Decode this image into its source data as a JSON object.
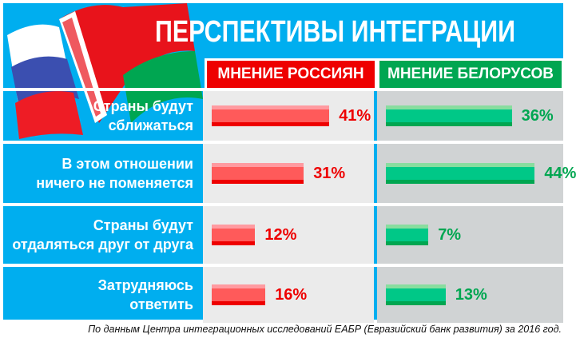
{
  "title": "ПЕРСПЕКТИВЫ ИНТЕГРАЦИИ",
  "note": "По данным Центра интеграционных исследований ЕАБР (Евразийский банк развития) за 2016 год.",
  "colors": {
    "background": "#00aeef",
    "russia": "#ff5a5a",
    "russia_text": "#ee0000",
    "belarus": "#00c887",
    "belarus_text": "#00a651"
  },
  "chart_data": {
    "type": "bar",
    "title": "ПЕРСПЕКТИВЫ ИНТЕГРАЦИИ",
    "categories": [
      "Страны будут\nсближаться",
      "В этом отношении\nничего не поменяется",
      "Страны будут\nотдаляться друг от друга",
      "Затрудняюсь\nответить"
    ],
    "series": [
      {
        "name": "МНЕНИЕ РОССИЯН",
        "values": [
          41,
          31,
          12,
          16
        ],
        "labels": [
          "41%",
          "31%",
          "12%",
          "16%"
        ]
      },
      {
        "name": "МНЕНИЕ БЕЛОРУСОВ",
        "values": [
          36,
          44,
          7,
          13
        ],
        "labels": [
          "36%",
          "44%",
          "7%",
          "13%"
        ]
      }
    ],
    "unit": "%"
  }
}
